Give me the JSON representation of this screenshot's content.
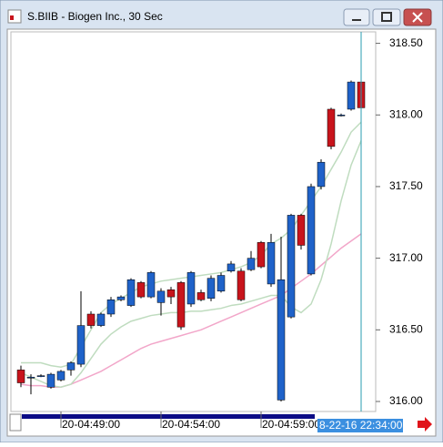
{
  "window": {
    "title": "S.BIIB - Biogen Inc., 30 Sec"
  },
  "chart_data": {
    "type": "candlestick",
    "categories": [
      null,
      null,
      null,
      null,
      "20-04:49:00",
      null,
      null,
      null,
      null,
      null,
      null,
      null,
      null,
      null,
      "20-04:54:00",
      null,
      null,
      null,
      null,
      null,
      null,
      null,
      null,
      null,
      "20-04:59:00",
      null,
      null,
      null,
      null,
      null,
      null,
      null,
      null,
      null,
      null
    ],
    "open": [
      316.22,
      316.17,
      316.18,
      316.1,
      316.15,
      316.22,
      316.26,
      316.61,
      316.53,
      316.61,
      316.71,
      316.67,
      316.83,
      316.73,
      316.69,
      316.78,
      316.83,
      316.68,
      316.76,
      316.72,
      316.77,
      316.91,
      316.91,
      316.92,
      317.11,
      316.82,
      316.01,
      316.59,
      317.3,
      316.89,
      317.5,
      318.04,
      318.0,
      318.04,
      318.23
    ],
    "high": [
      316.25,
      316.19,
      316.19,
      316.2,
      316.22,
      316.28,
      316.77,
      316.63,
      316.62,
      316.73,
      316.74,
      316.86,
      316.84,
      316.91,
      316.79,
      316.8,
      316.84,
      316.91,
      316.78,
      316.88,
      316.9,
      316.98,
      316.93,
      317.05,
      317.12,
      317.17,
      317.15,
      317.31,
      317.31,
      317.52,
      317.69,
      318.05,
      318.01,
      318.24,
      318.5
    ],
    "low": [
      316.1,
      316.05,
      316.17,
      316.09,
      316.14,
      316.18,
      316.24,
      316.51,
      316.52,
      316.59,
      316.7,
      316.66,
      316.72,
      316.72,
      316.6,
      316.68,
      316.5,
      316.66,
      316.7,
      316.7,
      316.76,
      316.9,
      316.7,
      316.91,
      316.93,
      316.8,
      316.0,
      316.58,
      317.06,
      316.88,
      317.48,
      317.76,
      317.99,
      318.03,
      318.04
    ],
    "close": [
      316.13,
      316.17,
      316.18,
      316.19,
      316.21,
      316.27,
      316.53,
      316.53,
      316.61,
      316.71,
      316.73,
      316.85,
      316.73,
      316.9,
      316.77,
      316.73,
      316.52,
      316.9,
      316.71,
      316.86,
      316.88,
      316.96,
      316.71,
      317.0,
      316.94,
      317.11,
      316.85,
      317.3,
      317.09,
      317.5,
      317.67,
      317.78,
      318.0,
      318.23,
      318.05
    ],
    "up_color": "#1f62c9",
    "down_color": "#c8141c",
    "series": [
      {
        "color": "#f2a6c9",
        "values": [
          316.12,
          316.11,
          316.11,
          316.1,
          316.1,
          316.12,
          316.15,
          316.18,
          316.21,
          316.25,
          316.29,
          316.33,
          316.37,
          316.4,
          316.42,
          316.44,
          316.46,
          316.48,
          316.5,
          316.53,
          316.56,
          316.59,
          316.62,
          316.65,
          316.68,
          316.71,
          316.74,
          316.79,
          316.84,
          316.89,
          316.95,
          317.01,
          317.07,
          317.12,
          317.17
        ]
      },
      {
        "color": "#bfdcbf",
        "values": [
          316.27,
          316.27,
          316.27,
          316.25,
          316.24,
          316.26,
          316.38,
          316.5,
          316.62,
          316.68,
          316.72,
          316.76,
          316.8,
          316.82,
          316.84,
          316.85,
          316.86,
          316.87,
          316.88,
          316.89,
          316.9,
          316.92,
          316.94,
          316.97,
          317.02,
          317.1,
          317.14,
          317.2,
          317.3,
          317.4,
          317.5,
          317.62,
          317.74,
          317.88,
          317.95
        ]
      },
      {
        "color": "#bfdcbf",
        "values": [
          316.2,
          316.17,
          316.14,
          316.11,
          316.1,
          316.12,
          316.2,
          316.3,
          316.4,
          316.47,
          316.52,
          316.56,
          316.58,
          316.6,
          316.61,
          316.62,
          316.62,
          316.63,
          316.63,
          316.64,
          316.65,
          316.67,
          316.68,
          316.7,
          316.72,
          316.74,
          316.74,
          316.66,
          316.62,
          316.68,
          316.85,
          317.1,
          317.4,
          317.65,
          317.82
        ]
      }
    ],
    "ylim": [
      315.93,
      318.58
    ],
    "yticks": [
      {
        "value": 316,
        "label": "316.00"
      },
      {
        "value": 316.5,
        "label": "316.50"
      },
      {
        "value": 317,
        "label": "317.00"
      },
      {
        "value": 317.5,
        "label": "317.50"
      },
      {
        "value": 318,
        "label": "318.00"
      },
      {
        "value": 318.5,
        "label": "318.50"
      }
    ],
    "cursor_label": "8-22-16 22:34:00"
  }
}
